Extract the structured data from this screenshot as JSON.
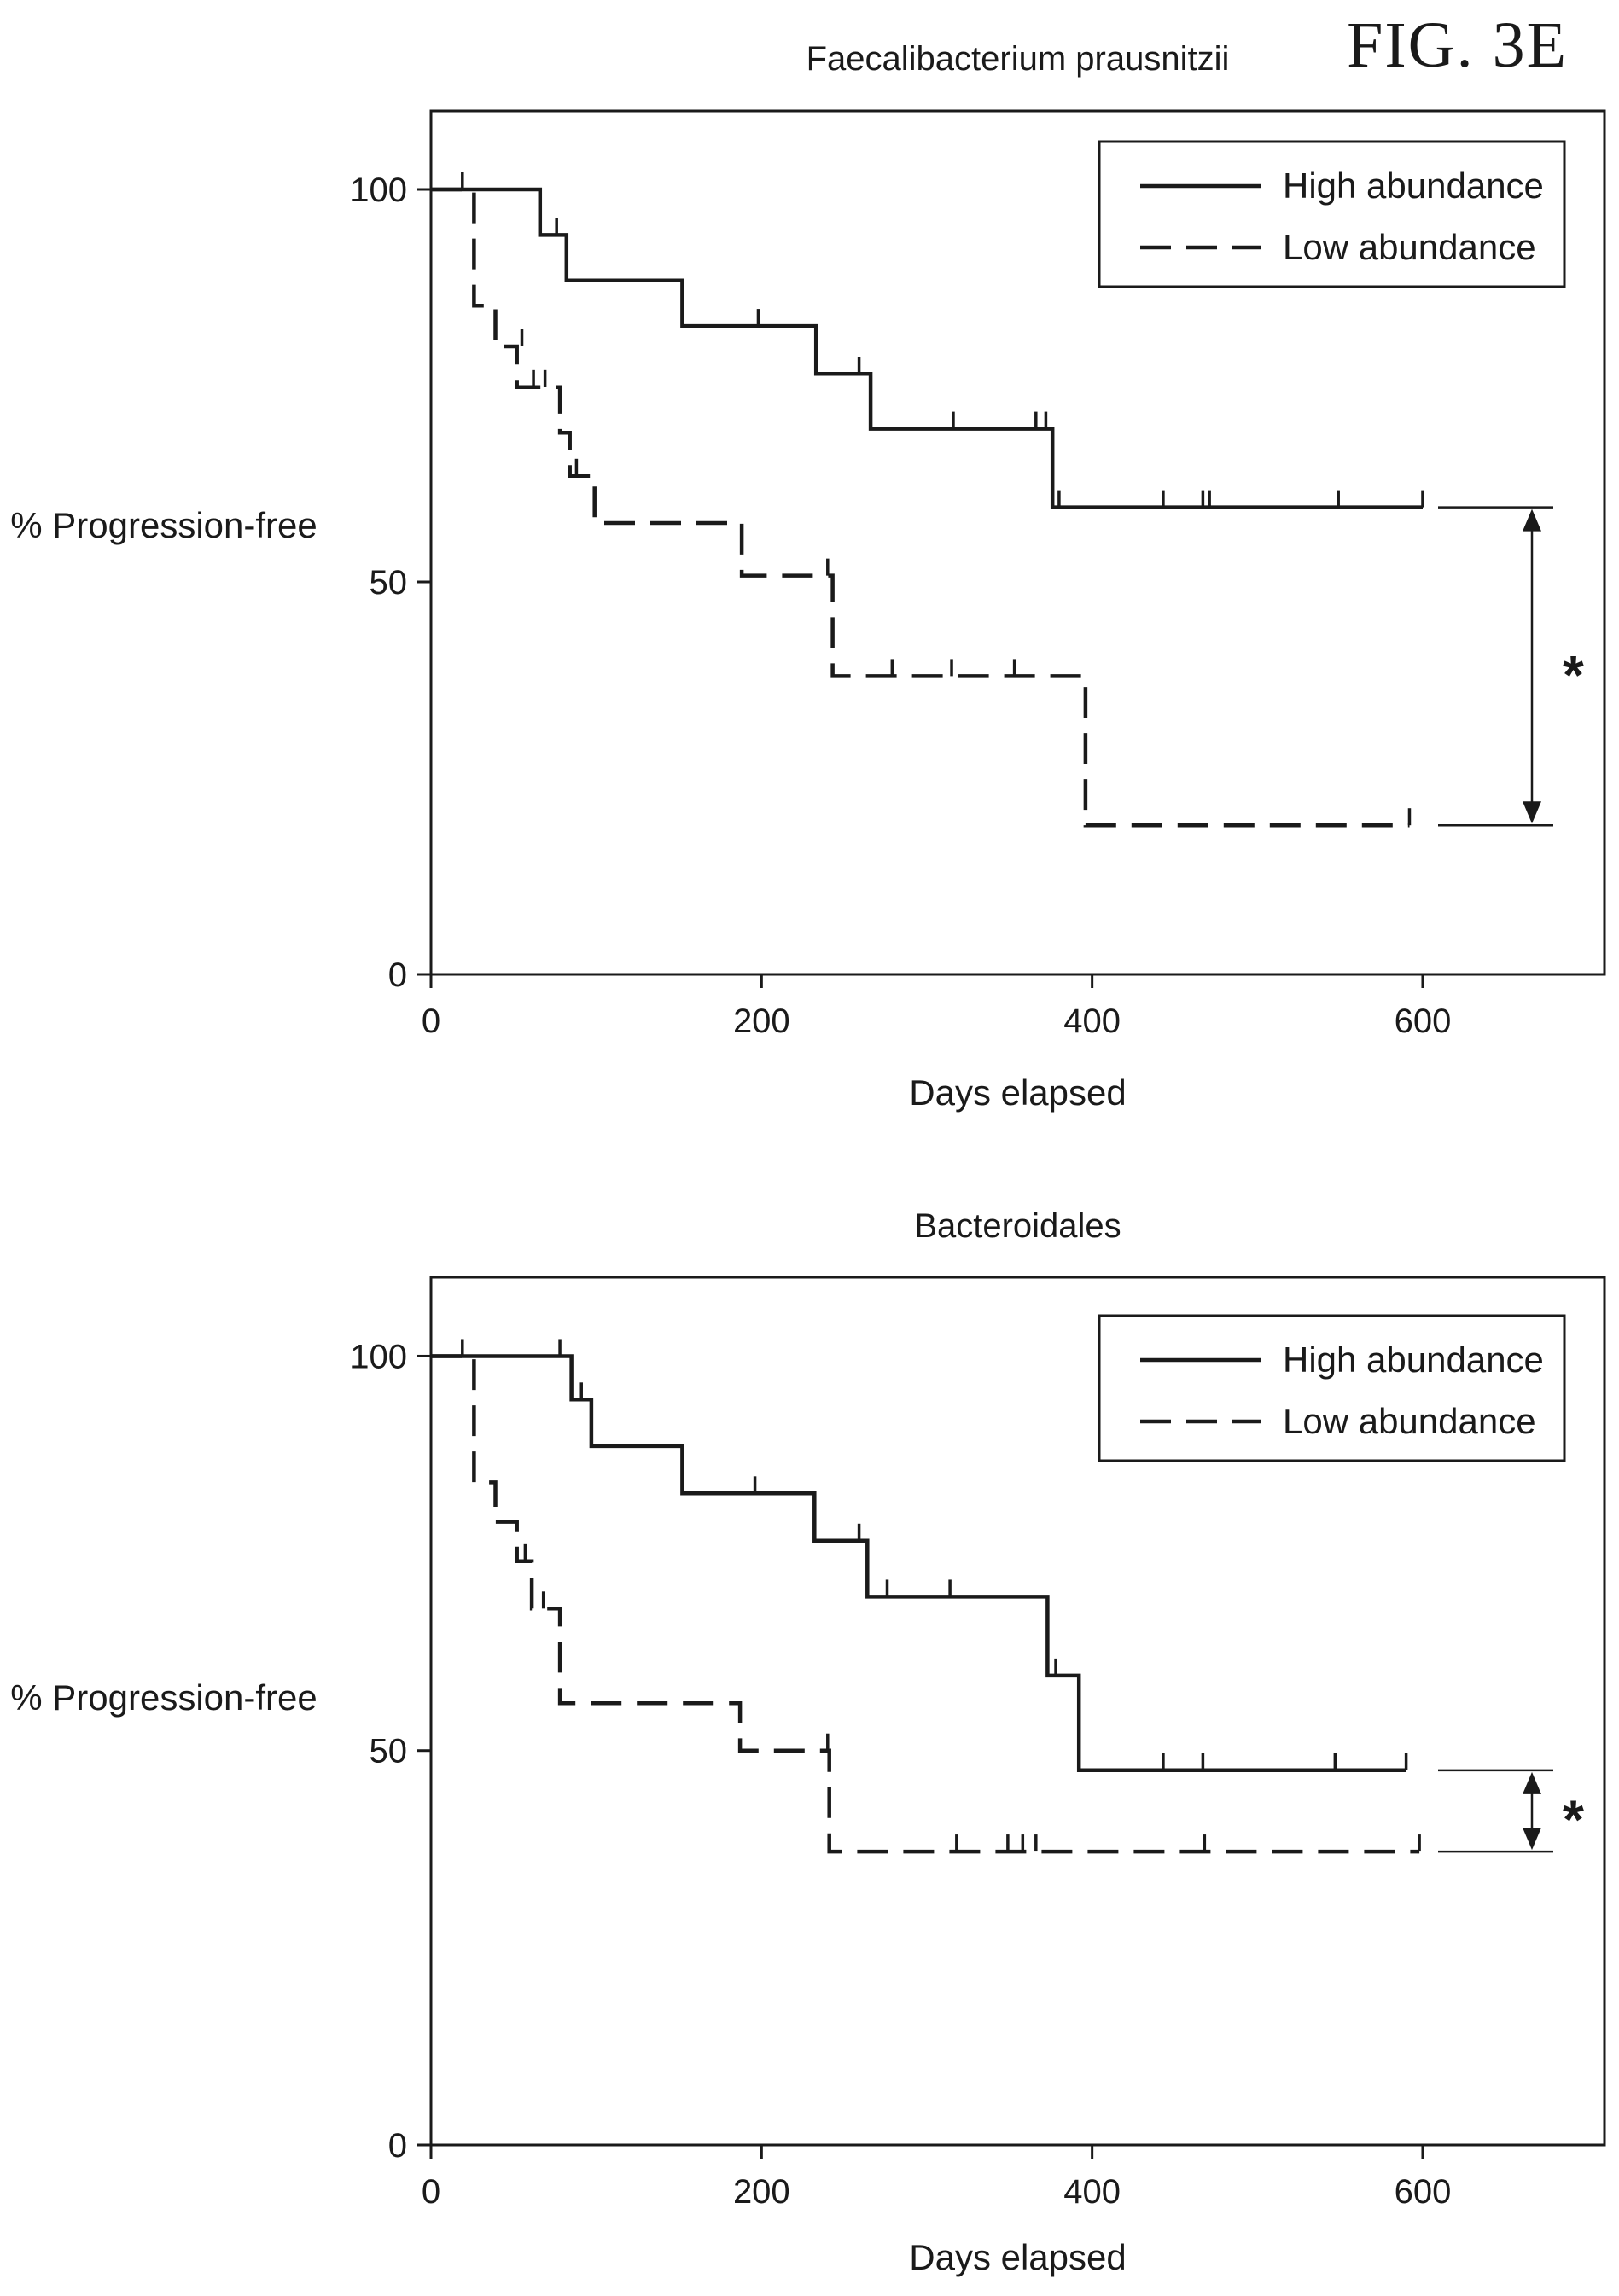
{
  "figure_label": "FIG. 3E",
  "colors": {
    "ink": "#1a1a1a",
    "background": "#ffffff"
  },
  "chart_data": [
    {
      "type": "line",
      "subtype": "kaplan-meier",
      "title": "Faecalibacterium prausnitzii",
      "xlabel": "Days elapsed",
      "ylabel": "% Progression-free",
      "xlim": [
        0,
        710
      ],
      "ylim": [
        0,
        110
      ],
      "xticks": [
        0,
        200,
        400,
        600
      ],
      "yticks": [
        0,
        50,
        100
      ],
      "legend_position": "top-right",
      "significance": "*",
      "significance_between": [
        59.5,
        19.0
      ],
      "series": [
        {
          "name": "High abundance",
          "style": "solid",
          "points": [
            [
              0,
              100
            ],
            [
              66,
              100
            ],
            [
              66,
              94.2
            ],
            [
              82,
              94.2
            ],
            [
              82,
              88.4
            ],
            [
              152,
              88.4
            ],
            [
              152,
              82.6
            ],
            [
              233,
              82.6
            ],
            [
              233,
              76.5
            ],
            [
              266,
              76.5
            ],
            [
              266,
              69.5
            ],
            [
              376,
              69.5
            ],
            [
              376,
              59.5
            ],
            [
              600,
              59.5
            ]
          ],
          "censored": [
            [
              19,
              100
            ],
            [
              76,
              94.2
            ],
            [
              198,
              82.6
            ],
            [
              259,
              76.5
            ],
            [
              316,
              69.5
            ],
            [
              366,
              69.5
            ],
            [
              372,
              69.5
            ],
            [
              380,
              59.5
            ],
            [
              443,
              59.5
            ],
            [
              467,
              59.5
            ],
            [
              471,
              59.5
            ],
            [
              549,
              59.5
            ],
            [
              600,
              59.5
            ]
          ]
        },
        {
          "name": "Low abundance",
          "style": "dashed",
          "points": [
            [
              0,
              100
            ],
            [
              26,
              100
            ],
            [
              26,
              85.2
            ],
            [
              39,
              85.2
            ],
            [
              39,
              80
            ],
            [
              52,
              80
            ],
            [
              52,
              74.8
            ],
            [
              78,
              74.8
            ],
            [
              78,
              69
            ],
            [
              84,
              69
            ],
            [
              84,
              63.5
            ],
            [
              99,
              63.5
            ],
            [
              99,
              57.5
            ],
            [
              188,
              57.5
            ],
            [
              188,
              50.8
            ],
            [
              243,
              50.8
            ],
            [
              243,
              38
            ],
            [
              396,
              38
            ],
            [
              396,
              19
            ],
            [
              592,
              19
            ]
          ],
          "censored": [
            [
              55,
              80
            ],
            [
              62,
              74.8
            ],
            [
              69,
              74.8
            ],
            [
              88,
              63.5
            ],
            [
              240,
              50.8
            ],
            [
              279,
              38
            ],
            [
              315,
              38
            ],
            [
              353,
              38
            ],
            [
              592,
              19
            ]
          ]
        }
      ]
    },
    {
      "type": "line",
      "subtype": "kaplan-meier",
      "title": "Bacteroidales",
      "xlabel": "Days elapsed",
      "ylabel": "% Progression-free",
      "xlim": [
        0,
        710
      ],
      "ylim": [
        0,
        110
      ],
      "xticks": [
        0,
        200,
        400,
        600
      ],
      "yticks": [
        0,
        50,
        100
      ],
      "legend_position": "top-right",
      "significance": "*",
      "significance_between": [
        47.5,
        37.2
      ],
      "series": [
        {
          "name": "High abundance",
          "style": "solid",
          "points": [
            [
              0,
              100
            ],
            [
              85,
              100
            ],
            [
              85,
              94.5
            ],
            [
              97,
              94.5
            ],
            [
              97,
              88.6
            ],
            [
              152,
              88.6
            ],
            [
              152,
              82.6
            ],
            [
              232,
              82.6
            ],
            [
              232,
              76.6
            ],
            [
              264,
              76.6
            ],
            [
              264,
              69.5
            ],
            [
              373,
              69.5
            ],
            [
              373,
              59.5
            ],
            [
              392,
              59.5
            ],
            [
              392,
              47.5
            ],
            [
              590,
              47.5
            ]
          ],
          "censored": [
            [
              19,
              100
            ],
            [
              78,
              100
            ],
            [
              91,
              94.5
            ],
            [
              196,
              82.6
            ],
            [
              259,
              76.6
            ],
            [
              276,
              69.5
            ],
            [
              314,
              69.5
            ],
            [
              378,
              59.5
            ],
            [
              443,
              47.5
            ],
            [
              467,
              47.5
            ],
            [
              547,
              47.5
            ],
            [
              590,
              47.5
            ]
          ]
        },
        {
          "name": "Low abundance",
          "style": "dashed",
          "points": [
            [
              0,
              100
            ],
            [
              26,
              100
            ],
            [
              26,
              84
            ],
            [
              39,
              84
            ],
            [
              39,
              79
            ],
            [
              52,
              79
            ],
            [
              52,
              74
            ],
            [
              61,
              74
            ],
            [
              61,
              68
            ],
            [
              78,
              68
            ],
            [
              78,
              56
            ],
            [
              187,
              56
            ],
            [
              187,
              50
            ],
            [
              241,
              50
            ],
            [
              241,
              37.2
            ],
            [
              598,
              37.2
            ]
          ],
          "censored": [
            [
              57,
              74
            ],
            [
              68,
              68
            ],
            [
              240,
              50
            ],
            [
              318,
              37.2
            ],
            [
              349,
              37.2
            ],
            [
              358,
              37.2
            ],
            [
              366,
              37.2
            ],
            [
              468,
              37.2
            ],
            [
              598,
              37.2
            ]
          ]
        }
      ]
    }
  ]
}
